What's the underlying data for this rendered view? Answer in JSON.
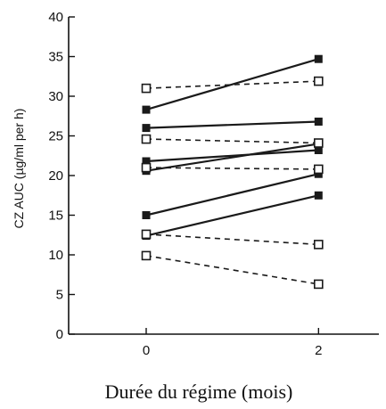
{
  "chart_data": {
    "type": "line",
    "xlabel": "Durée du régime (mois)",
    "ylabel": "CZ AUC (µg/ml per h)",
    "x_ticks": [
      0,
      2
    ],
    "y_ticks": [
      0,
      5,
      10,
      15,
      20,
      25,
      30,
      35,
      40
    ],
    "xlim": [
      -0.9,
      2.7
    ],
    "ylim": [
      0,
      40
    ],
    "grid": false,
    "legend": "none",
    "series": [
      {
        "x": [
          0,
          2
        ],
        "values": [
          28.3,
          34.7
        ],
        "marker": "filled-square",
        "line": "solid"
      },
      {
        "x": [
          0,
          2
        ],
        "values": [
          26.0,
          26.8
        ],
        "marker": "filled-square",
        "line": "solid"
      },
      {
        "x": [
          0,
          2
        ],
        "values": [
          21.8,
          23.2
        ],
        "marker": "filled-square",
        "line": "solid"
      },
      {
        "x": [
          0,
          2
        ],
        "values": [
          20.6,
          24.0
        ],
        "marker": "filled-square",
        "line": "solid"
      },
      {
        "x": [
          0,
          2
        ],
        "values": [
          15.0,
          20.2
        ],
        "marker": "filled-square",
        "line": "solid"
      },
      {
        "x": [
          0,
          2
        ],
        "values": [
          12.4,
          17.5
        ],
        "marker": "filled-square",
        "line": "solid"
      },
      {
        "x": [
          0,
          2
        ],
        "values": [
          31.0,
          31.9
        ],
        "marker": "open-square",
        "line": "dashed"
      },
      {
        "x": [
          0,
          2
        ],
        "values": [
          24.6,
          24.1
        ],
        "marker": "open-square",
        "line": "dashed"
      },
      {
        "x": [
          0,
          2
        ],
        "values": [
          21.0,
          20.8
        ],
        "marker": "open-square",
        "line": "dashed"
      },
      {
        "x": [
          0,
          2
        ],
        "values": [
          12.6,
          11.3
        ],
        "marker": "open-square",
        "line": "dashed"
      },
      {
        "x": [
          0,
          2
        ],
        "values": [
          9.9,
          6.3
        ],
        "marker": "open-square",
        "line": "dashed"
      }
    ]
  }
}
